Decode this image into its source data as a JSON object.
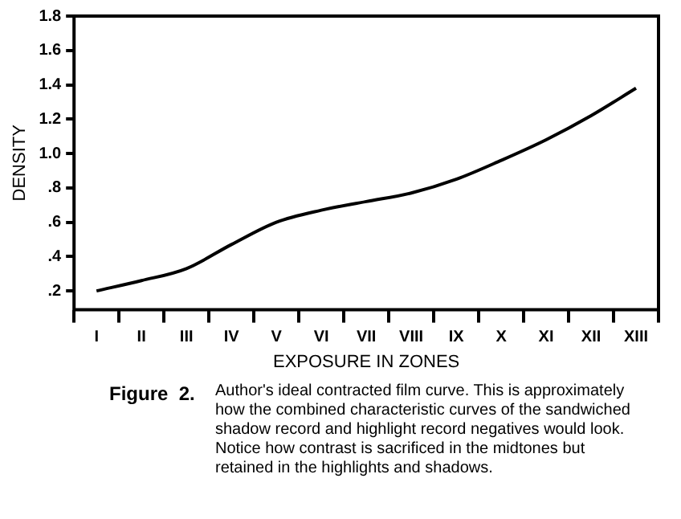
{
  "chart_data": {
    "type": "line",
    "xlabel": "EXPOSURE IN ZONES",
    "ylabel": "DENSITY",
    "categories": [
      "I",
      "II",
      "III",
      "IV",
      "V",
      "VI",
      "VII",
      "VIII",
      "IX",
      "X",
      "XI",
      "XII",
      "XIII"
    ],
    "series": [
      {
        "color": "#000000",
        "values": [
          0.2,
          0.26,
          0.33,
          0.47,
          0.6,
          0.67,
          0.72,
          0.77,
          0.85,
          0.96,
          1.08,
          1.22,
          1.38
        ]
      }
    ],
    "ylim": [
      0.09,
      1.8
    ],
    "yticks": [
      {
        "value": 0.2,
        "label": ".2"
      },
      {
        "value": 0.4,
        "label": ".4"
      },
      {
        "value": 0.6,
        "label": ".6"
      },
      {
        "value": 0.8,
        "label": ".8"
      },
      {
        "value": 1.0,
        "label": "1.0"
      },
      {
        "value": 1.2,
        "label": "1.2"
      },
      {
        "value": 1.4,
        "label": "1.4"
      },
      {
        "value": 1.6,
        "label": "1.6"
      },
      {
        "value": 1.8,
        "label": "1.8"
      }
    ],
    "grid": false,
    "legend": false,
    "marker": "none",
    "line_style": "solid",
    "annotations": [
      "Figure  2.",
      "Author's ideal contracted film curve. This is approximately how the combined characteristic curves of the sandwiched shadow record and highlight record negatives would look. Notice how contrast is sacrificed in the midtones but retained in the highlights and shadows."
    ]
  }
}
